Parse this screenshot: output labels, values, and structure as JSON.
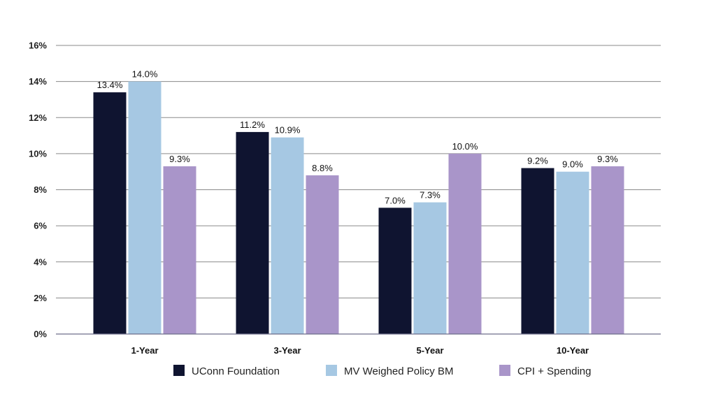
{
  "chart_data": {
    "type": "bar",
    "title": "",
    "xlabel": "",
    "ylabel": "",
    "categories": [
      "1-Year",
      "3-Year",
      "5-Year",
      "10-Year"
    ],
    "series": [
      {
        "name": "UConn Foundation",
        "color": "#0f1430",
        "values": [
          13.4,
          11.2,
          7.0,
          9.2
        ],
        "labels": [
          "13.4%",
          "11.2%",
          "7.0%",
          "9.2%"
        ]
      },
      {
        "name": "MV Weighed Policy BM",
        "color": "#a6c8e3",
        "values": [
          14.0,
          10.9,
          7.3,
          9.0
        ],
        "labels": [
          "14.0%",
          "10.9%",
          "7.3%",
          "9.0%"
        ]
      },
      {
        "name": "CPI + Spending",
        "color": "#a995c9",
        "values": [
          9.3,
          8.8,
          10.0,
          9.3
        ],
        "labels": [
          "9.3%",
          "8.8%",
          "10.0%",
          "9.3%"
        ]
      }
    ],
    "ylim": [
      0,
      16
    ],
    "yticks": [
      0,
      2,
      4,
      6,
      8,
      10,
      12,
      14,
      16
    ],
    "ytick_labels": [
      "0%",
      "2%",
      "4%",
      "6%",
      "8%",
      "10%",
      "12%",
      "14%",
      "16%"
    ],
    "grid": true,
    "legend": "bottom-center"
  }
}
